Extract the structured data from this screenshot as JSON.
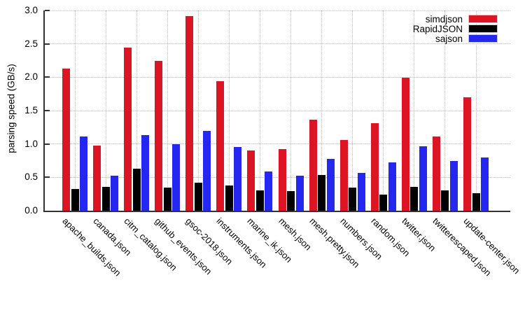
{
  "chart_data": {
    "type": "bar",
    "title": "",
    "xlabel": "",
    "ylabel": "parsing speed (GB/s)",
    "ylim": [
      0,
      3.0
    ],
    "yticks": [
      0.0,
      0.5,
      1.0,
      1.5,
      2.0,
      2.5,
      3.0
    ],
    "grid": true,
    "legend_position": "top-right-inside",
    "categories": [
      "apache_builds.json",
      "canada.json",
      "citm_catalog.json",
      "github_events.json",
      "gsoc-2018.json",
      "instruments.json",
      "marine_ik.json",
      "mesh.json",
      "mesh.pretty.json",
      "numbers.json",
      "random.json",
      "twitter.json",
      "twitterescaped.json",
      "update-center.json"
    ],
    "series": [
      {
        "name": "simdjson",
        "color": "#dc1424",
        "values": [
          2.13,
          0.98,
          2.44,
          2.24,
          2.92,
          1.94,
          0.9,
          0.92,
          1.36,
          1.06,
          1.31,
          1.99,
          1.11,
          1.7
        ]
      },
      {
        "name": "RapidJSON",
        "color": "#000000",
        "values": [
          0.33,
          0.36,
          0.63,
          0.35,
          0.42,
          0.38,
          0.3,
          0.29,
          0.54,
          0.35,
          0.24,
          0.36,
          0.3,
          0.26
        ]
      },
      {
        "name": "sajson",
        "color": "#2427ee",
        "values": [
          1.11,
          0.52,
          1.13,
          1.0,
          1.2,
          0.95,
          0.59,
          0.52,
          0.78,
          0.57,
          0.72,
          0.96,
          0.74,
          0.8
        ]
      }
    ],
    "axis_color": "#333333",
    "grid_color": "#c4c4c4"
  }
}
